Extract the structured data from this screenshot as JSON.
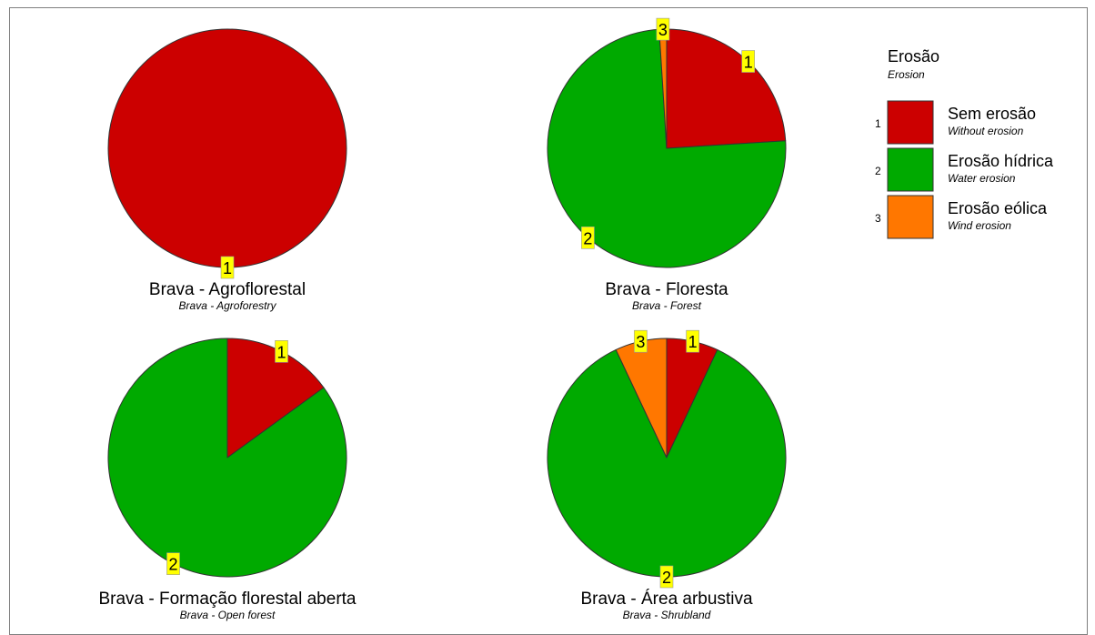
{
  "colors": {
    "1": "#cc0000",
    "2": "#00aa00",
    "3": "#ff7700",
    "label_bg": "#ffff00",
    "outline": "#333333"
  },
  "legend": {
    "title": "Erosão",
    "subtitle": "Erosion",
    "items": [
      {
        "code": "1",
        "label": "Sem erosão",
        "sublabel": "Without erosion"
      },
      {
        "code": "2",
        "label": "Erosão hídrica",
        "sublabel": "Water erosion"
      },
      {
        "code": "3",
        "label": "Erosão eólica",
        "sublabel": "Wind erosion"
      }
    ]
  },
  "chart_data": [
    {
      "type": "pie",
      "title": "Brava - Agroflorestal",
      "subtitle": "Brava - Agroforestry",
      "slices": [
        {
          "code": "1",
          "value": 100
        }
      ]
    },
    {
      "type": "pie",
      "title": "Brava - Floresta",
      "subtitle": "Brava - Forest",
      "slices": [
        {
          "code": "1",
          "value": 24
        },
        {
          "code": "2",
          "value": 75
        },
        {
          "code": "3",
          "value": 1
        }
      ]
    },
    {
      "type": "pie",
      "title": "Brava - Formação florestal aberta",
      "subtitle": "Brava - Open forest",
      "slices": [
        {
          "code": "1",
          "value": 15
        },
        {
          "code": "2",
          "value": 85
        }
      ]
    },
    {
      "type": "pie",
      "title": "Brava - Área arbustiva",
      "subtitle": "Brava - Shrubland",
      "slices": [
        {
          "code": "1",
          "value": 7
        },
        {
          "code": "2",
          "value": 86
        },
        {
          "code": "3",
          "value": 7
        }
      ]
    }
  ]
}
